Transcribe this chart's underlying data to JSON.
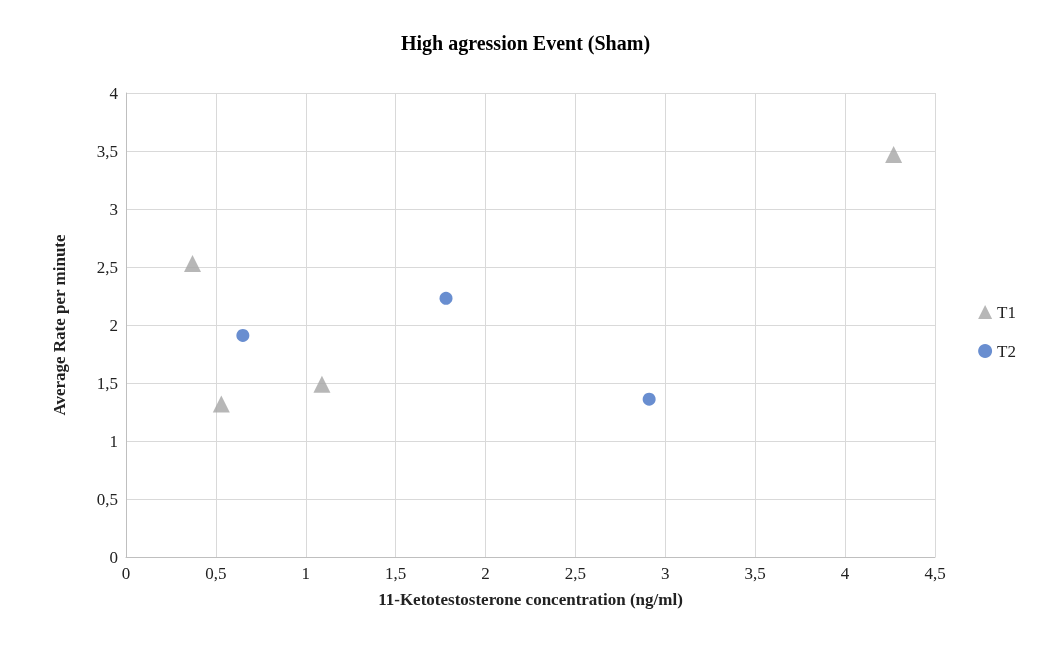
{
  "chart_data": {
    "type": "scatter",
    "title": "High agression Event (Sham)",
    "xlabel": "11-Ketotestosterone concentration (ng/ml)",
    "ylabel": "Average Rate per minute",
    "xlim": [
      0,
      4.5
    ],
    "xticks": [
      0,
      {
        "value": 0.5,
        "label": "0,5"
      },
      1,
      {
        "value": 1.5,
        "label": "1,5"
      },
      2,
      {
        "value": 2.5,
        "label": "2,5"
      },
      3,
      {
        "value": 3.5,
        "label": "3,5"
      },
      4,
      {
        "value": 4.5,
        "label": "4,5"
      }
    ],
    "ylim": [
      0,
      4
    ],
    "yticks": [
      0,
      {
        "value": 0.5,
        "label": "0,5"
      },
      1,
      {
        "value": 1.5,
        "label": "1,5"
      },
      2,
      {
        "value": 2.5,
        "label": "2,5"
      },
      3,
      {
        "value": 3.5,
        "label": "3,5"
      },
      4
    ],
    "grid": true,
    "legend": "right",
    "series": [
      {
        "name": "T1",
        "color": "#a5a5a5",
        "marker": "triangle",
        "x": [
          0.37,
          0.53,
          1.09,
          4.27
        ],
        "values": [
          2.53,
          1.32,
          1.49,
          3.47
        ]
      },
      {
        "name": "T2",
        "color": "#4472c4",
        "marker": "circle",
        "x": [
          0.65,
          1.78,
          2.91
        ],
        "values": [
          1.91,
          2.23,
          1.36
        ]
      }
    ]
  }
}
